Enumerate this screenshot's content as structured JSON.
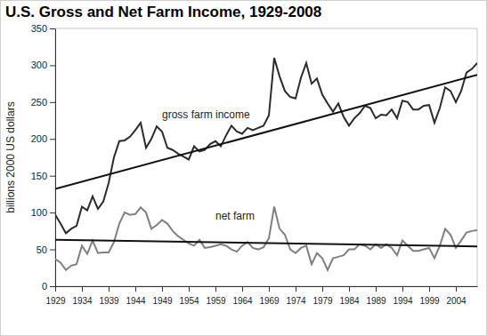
{
  "chart_data": {
    "type": "line",
    "title": "U.S. Gross and Net Farm Income, 1929-2008",
    "y_label": "billions 2000 US dollars",
    "x": [
      1929,
      1930,
      1931,
      1932,
      1933,
      1934,
      1935,
      1936,
      1937,
      1938,
      1939,
      1940,
      1941,
      1942,
      1943,
      1944,
      1945,
      1946,
      1947,
      1948,
      1949,
      1950,
      1951,
      1952,
      1953,
      1954,
      1955,
      1956,
      1957,
      1958,
      1959,
      1960,
      1961,
      1962,
      1963,
      1964,
      1965,
      1966,
      1967,
      1968,
      1969,
      1970,
      1971,
      1972,
      1973,
      1974,
      1975,
      1976,
      1977,
      1978,
      1979,
      1980,
      1981,
      1982,
      1983,
      1984,
      1985,
      1986,
      1987,
      1988,
      1989,
      1990,
      1991,
      1992,
      1993,
      1994,
      1995,
      1996,
      1997,
      1998,
      1999,
      2000,
      2001,
      2002,
      2003,
      2004,
      2005,
      2006,
      2007,
      2008
    ],
    "series": [
      {
        "name": "gross farm income",
        "color": "#2b2b2b",
        "values": [
          97,
          85,
          72,
          78,
          82,
          108,
          103,
          122,
          105,
          115,
          140,
          175,
          197,
          198,
          203,
          212,
          222,
          188,
          200,
          217,
          210,
          188,
          185,
          180,
          176,
          172,
          190,
          183,
          185,
          193,
          197,
          190,
          205,
          218,
          210,
          207,
          215,
          212,
          215,
          218,
          232,
          310,
          285,
          265,
          257,
          255,
          283,
          303,
          275,
          282,
          260,
          248,
          237,
          248,
          230,
          218,
          228,
          235,
          245,
          242,
          228,
          233,
          232,
          240,
          228,
          252,
          250,
          240,
          240,
          245,
          246,
          222,
          242,
          270,
          265,
          250,
          265,
          290,
          295,
          303
        ]
      },
      {
        "name": "net farm",
        "color": "#808080",
        "values": [
          37,
          32,
          22,
          28,
          30,
          55,
          44,
          62,
          45,
          46,
          46,
          60,
          85,
          100,
          97,
          98,
          107,
          100,
          78,
          83,
          90,
          85,
          75,
          68,
          63,
          58,
          55,
          63,
          52,
          53,
          55,
          57,
          55,
          50,
          47,
          55,
          60,
          52,
          50,
          53,
          65,
          108,
          78,
          70,
          50,
          45,
          52,
          55,
          30,
          45,
          38,
          22,
          38,
          40,
          42,
          50,
          50,
          57,
          55,
          50,
          57,
          52,
          57,
          52,
          42,
          62,
          55,
          48,
          48,
          50,
          52,
          38,
          55,
          78,
          70,
          52,
          62,
          73,
          75,
          76
        ]
      }
    ],
    "trend_lines": [
      {
        "x": [
          1929,
          2008
        ],
        "values": [
          132,
          287
        ],
        "color": "#111111"
      },
      {
        "x": [
          1929,
          2008
        ],
        "values": [
          63,
          54
        ],
        "color": "#111111"
      }
    ],
    "xlim": [
      1929,
      2008
    ],
    "xticks": [
      1929,
      1934,
      1939,
      1944,
      1949,
      1954,
      1959,
      1964,
      1969,
      1974,
      1979,
      1984,
      1989,
      1994,
      1999,
      2004
    ],
    "ylim": [
      0,
      350
    ],
    "yticks": [
      0,
      50,
      100,
      150,
      200,
      250,
      300,
      350
    ],
    "grid": false
  }
}
